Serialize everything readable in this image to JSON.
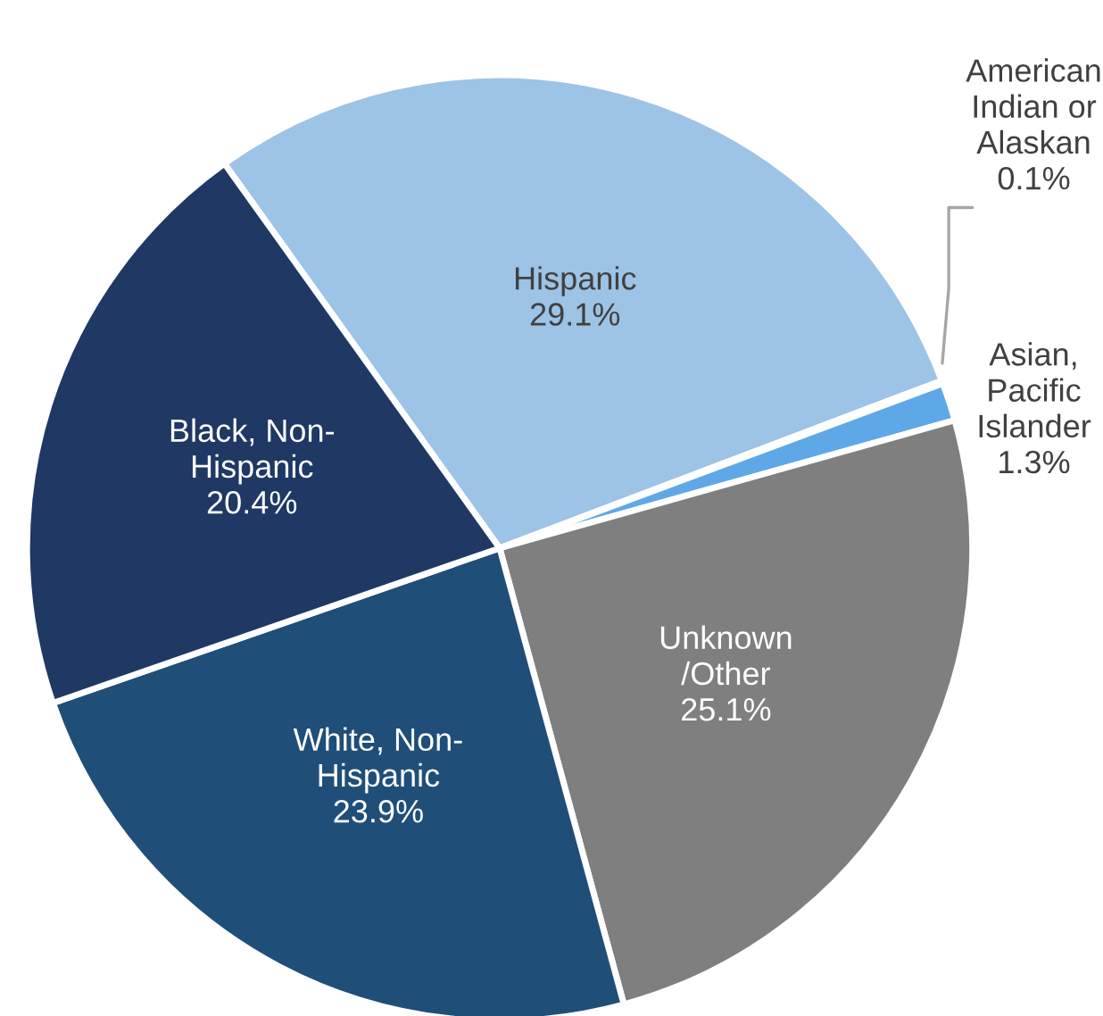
{
  "chart_data": {
    "type": "pie",
    "categories": [
      "Hispanic",
      "American\nIndian or\nAlaskan",
      "Asian,\nPacific\nIslander",
      "Unknown\n/Other",
      "White, Non-\nHispanic",
      "Black, Non-\nHispanic"
    ],
    "values": [
      29.1,
      0.1,
      1.3,
      25.1,
      23.9,
      20.4
    ],
    "value_labels": [
      "29.1%",
      "0.1%",
      "1.3%",
      "25.1%",
      "23.9%",
      "20.4%"
    ],
    "colors": [
      "#9dc3e6",
      "#bdd7ee",
      "#5ea8e8",
      "#7f7f7f",
      "#1f4e79",
      "#1f3864"
    ],
    "legend": false
  }
}
